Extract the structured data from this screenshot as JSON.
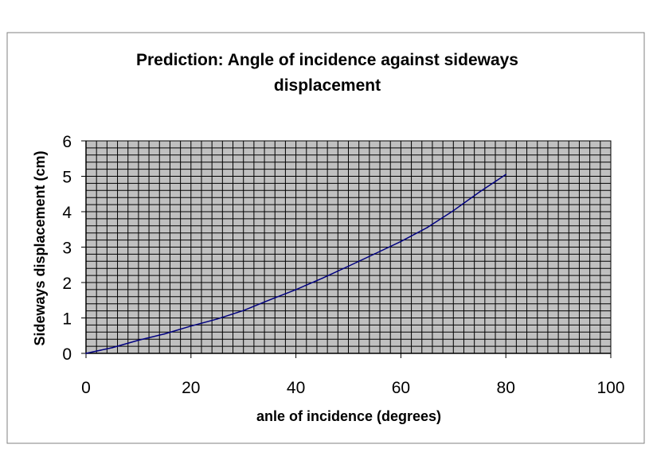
{
  "chart_data": {
    "type": "line",
    "title_lines": [
      "Prediction: Angle of incidence against sideways",
      "displacement"
    ],
    "xlabel": "anle of incidence (degrees)",
    "ylabel": "Sideways displacement (cm)",
    "xlim": [
      0,
      100
    ],
    "ylim": [
      0,
      6
    ],
    "x_ticks": [
      "0",
      "20",
      "40",
      "60",
      "80",
      "100"
    ],
    "y_ticks": [
      "0",
      "1",
      "2",
      "3",
      "4",
      "5",
      "6"
    ],
    "grid": true,
    "legend": "none",
    "series": [
      {
        "color": "#000080",
        "x": [
          0,
          5,
          10,
          15,
          20,
          25,
          30,
          35,
          40,
          45,
          50,
          55,
          60,
          65,
          70,
          75,
          80
        ],
        "y": [
          0,
          0.16,
          0.37,
          0.55,
          0.77,
          0.97,
          1.21,
          1.51,
          1.8,
          2.12,
          2.46,
          2.81,
          3.16,
          3.55,
          4.03,
          4.56,
          5.05
        ]
      }
    ],
    "plot_background": "#c0c0c0",
    "grid_color": "#000000"
  }
}
